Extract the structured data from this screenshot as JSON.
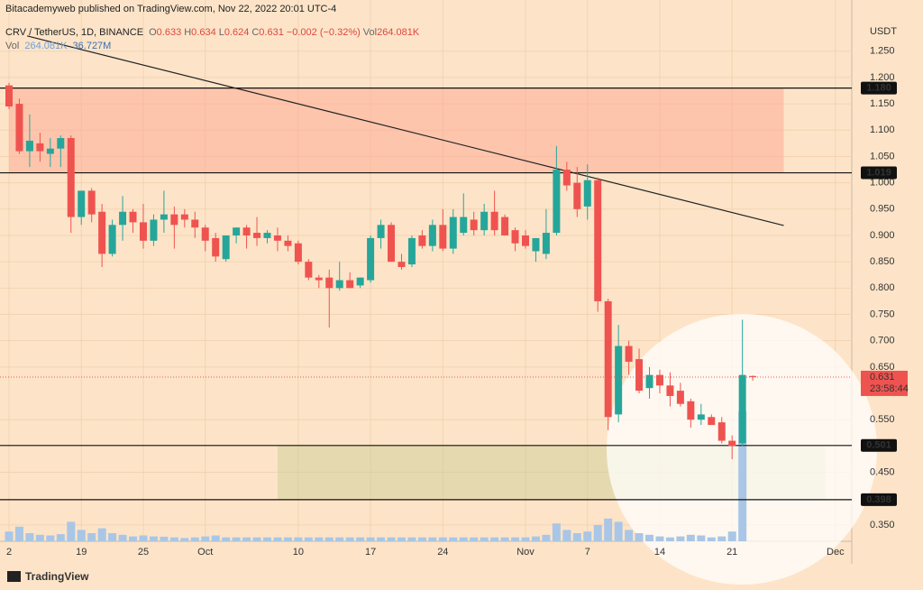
{
  "chart_data": {
    "type": "candlestick",
    "header": "Bitacademyweb published on TradingView.com, Nov 22, 2022 20:01 UTC-4",
    "symbol": "CRV / TetherUS, 1D, BINANCE",
    "legend_ohlc": [
      "O",
      "0.633",
      "H",
      "0.634",
      "L",
      "0.624",
      "C",
      "0.631",
      "−0.002 (−0.32%)",
      "Vol",
      "264.081K"
    ],
    "volume_legend": [
      "Vol",
      "264.081K",
      "36.727M"
    ],
    "currency": "USDT",
    "footer": "TradingView",
    "categories": [
      "2",
      null,
      null,
      null,
      null,
      null,
      null,
      "19",
      null,
      null,
      null,
      null,
      null,
      "25",
      null,
      null,
      null,
      null,
      null,
      "Oct",
      null,
      null,
      null,
      null,
      null,
      null,
      null,
      null,
      "10",
      null,
      null,
      null,
      null,
      null,
      null,
      "17",
      null,
      null,
      null,
      null,
      null,
      null,
      "24",
      null,
      null,
      null,
      null,
      null,
      null,
      null,
      "Nov",
      null,
      null,
      null,
      null,
      null,
      "7",
      null,
      null,
      null,
      null,
      null,
      null,
      "14",
      null,
      null,
      null,
      null,
      null,
      null,
      "21",
      null,
      null,
      null,
      null,
      null,
      null,
      null,
      null,
      null,
      "Dec"
    ],
    "open": [
      1.185,
      1.15,
      1.06,
      1.075,
      1.055,
      1.065,
      1.085,
      0.935,
      0.985,
      0.945,
      0.865,
      0.92,
      0.945,
      0.925,
      0.89,
      0.93,
      0.94,
      0.94,
      0.93,
      0.915,
      0.895,
      0.855,
      0.9,
      0.915,
      0.905,
      0.895,
      0.9,
      0.89,
      0.885,
      0.85,
      0.82,
      0.82,
      0.8,
      0.815,
      0.805,
      0.815,
      0.895,
      0.92,
      0.85,
      0.845,
      0.9,
      0.88,
      0.92,
      0.875,
      0.905,
      0.93,
      0.91,
      0.945,
      0.935,
      0.91,
      0.9,
      0.87,
      0.865,
      0.905,
      1.025,
      1.0,
      0.955,
      1.005,
      0.775,
      0.56,
      0.69,
      0.665,
      0.61,
      0.635,
      0.615,
      0.605,
      0.585,
      0.55,
      0.555,
      0.545,
      0.51,
      0.505,
      0.633,
      null,
      null,
      null,
      null,
      null,
      null,
      null,
      null
    ],
    "high": [
      1.19,
      1.16,
      1.13,
      1.095,
      1.085,
      1.09,
      1.09,
      0.985,
      0.99,
      0.96,
      0.93,
      0.975,
      0.95,
      0.96,
      0.94,
      0.985,
      0.955,
      0.95,
      0.945,
      0.92,
      0.905,
      0.895,
      0.915,
      0.92,
      0.935,
      0.91,
      0.915,
      0.9,
      0.89,
      0.855,
      0.825,
      0.835,
      0.85,
      0.83,
      0.82,
      0.9,
      0.93,
      0.925,
      0.865,
      0.9,
      0.91,
      0.93,
      0.95,
      0.95,
      0.98,
      0.945,
      0.96,
      0.985,
      0.94,
      0.915,
      0.91,
      0.895,
      0.95,
      1.07,
      1.04,
      1.03,
      1.035,
      1.01,
      0.78,
      0.73,
      0.7,
      0.685,
      0.65,
      0.645,
      0.64,
      0.62,
      0.59,
      0.58,
      0.56,
      0.555,
      0.52,
      0.74,
      0.634,
      null,
      null,
      null,
      null,
      null,
      null,
      null,
      null
    ],
    "low": [
      1.14,
      1.055,
      1.03,
      1.04,
      1.03,
      1.03,
      0.905,
      0.92,
      0.925,
      0.84,
      0.86,
      0.89,
      0.905,
      0.875,
      0.88,
      0.905,
      0.875,
      0.915,
      0.895,
      0.87,
      0.85,
      0.85,
      0.885,
      0.875,
      0.88,
      0.885,
      0.87,
      0.87,
      0.845,
      0.815,
      0.8,
      0.725,
      0.795,
      0.8,
      0.8,
      0.81,
      0.875,
      0.85,
      0.835,
      0.84,
      0.875,
      0.87,
      0.87,
      0.865,
      0.9,
      0.9,
      0.9,
      0.9,
      0.9,
      0.87,
      0.875,
      0.85,
      0.855,
      0.9,
      0.985,
      0.935,
      0.93,
      0.755,
      0.53,
      0.545,
      0.635,
      0.6,
      0.59,
      0.6,
      0.575,
      0.575,
      0.535,
      0.54,
      0.545,
      0.505,
      0.475,
      0.5,
      0.624,
      null,
      null,
      null,
      null,
      null,
      null,
      null,
      null
    ],
    "close": [
      1.145,
      1.06,
      1.08,
      1.06,
      1.065,
      1.085,
      0.935,
      0.985,
      0.94,
      0.865,
      0.92,
      0.945,
      0.925,
      0.89,
      0.93,
      0.94,
      0.92,
      0.93,
      0.915,
      0.89,
      0.86,
      0.9,
      0.915,
      0.9,
      0.895,
      0.905,
      0.89,
      0.88,
      0.85,
      0.82,
      0.815,
      0.8,
      0.815,
      0.8,
      0.82,
      0.895,
      0.92,
      0.85,
      0.84,
      0.895,
      0.88,
      0.92,
      0.875,
      0.935,
      0.935,
      0.91,
      0.945,
      0.91,
      0.9,
      0.885,
      0.88,
      0.895,
      0.905,
      1.025,
      0.995,
      0.95,
      1.005,
      0.775,
      0.555,
      0.69,
      0.66,
      0.605,
      0.635,
      0.615,
      0.595,
      0.58,
      0.55,
      0.56,
      0.54,
      0.51,
      0.5,
      0.635,
      0.631,
      null,
      null,
      null,
      null,
      null,
      null,
      null,
      null
    ],
    "volume": [
      30,
      45,
      25,
      20,
      18,
      22,
      60,
      35,
      25,
      40,
      25,
      20,
      15,
      18,
      15,
      14,
      12,
      10,
      12,
      15,
      18,
      12,
      12,
      12,
      12,
      12,
      12,
      12,
      12,
      12,
      12,
      12,
      12,
      12,
      12,
      12,
      12,
      12,
      12,
      12,
      12,
      12,
      12,
      12,
      12,
      12,
      12,
      12,
      12,
      12,
      12,
      15,
      20,
      55,
      35,
      25,
      30,
      50,
      70,
      60,
      35,
      25,
      20,
      15,
      12,
      15,
      20,
      18,
      12,
      15,
      30,
      400,
      0.264081,
      null,
      null,
      null,
      null,
      null,
      null,
      null,
      null
    ],
    "up_color": "#26a69a",
    "down_color": "#ef5350",
    "volume_color": "#a9c6e6",
    "ylim": [
      0.319,
      1.313
    ],
    "yticks": [
      {
        "value": 0.35,
        "label": "0.350"
      },
      {
        "value": 0.45,
        "label": "0.450"
      },
      {
        "value": 0.55,
        "label": "0.550"
      },
      {
        "value": 0.65,
        "label": "0.650"
      },
      {
        "value": 0.7,
        "label": "0.700"
      },
      {
        "value": 0.75,
        "label": "0.750"
      },
      {
        "value": 0.8,
        "label": "0.800"
      },
      {
        "value": 0.85,
        "label": "0.850"
      },
      {
        "value": 0.9,
        "label": "0.900"
      },
      {
        "value": 0.95,
        "label": "0.950"
      },
      {
        "value": 1.0,
        "label": "1.000"
      },
      {
        "value": 1.05,
        "label": "1.050"
      },
      {
        "value": 1.1,
        "label": "1.100"
      },
      {
        "value": 1.15,
        "label": "1.150"
      },
      {
        "value": 1.2,
        "label": "1.200"
      },
      {
        "value": 1.25,
        "label": "1.250"
      }
    ],
    "grid": true,
    "levels": [
      {
        "value": 1.18,
        "label": "1.180"
      },
      {
        "value": 1.019,
        "label": "1.019"
      },
      {
        "value": 0.501,
        "label": "0.501"
      },
      {
        "value": 0.398,
        "label": "0.398"
      }
    ],
    "zones": [
      {
        "x": [
          0,
          75
        ],
        "y": [
          1.019,
          1.18
        ],
        "color": "rgba(255,160,140,0.45)"
      },
      {
        "x": [
          26,
          79
        ],
        "y": [
          0.398,
          0.501
        ],
        "color": "rgba(205,205,150,0.5)"
      }
    ],
    "trendline": {
      "x": [
        1.75,
        75
      ],
      "y": [
        1.279,
        0.919
      ]
    },
    "last_price": {
      "value": 0.631,
      "label": "0.631"
    },
    "countdown": "23:58:44"
  }
}
